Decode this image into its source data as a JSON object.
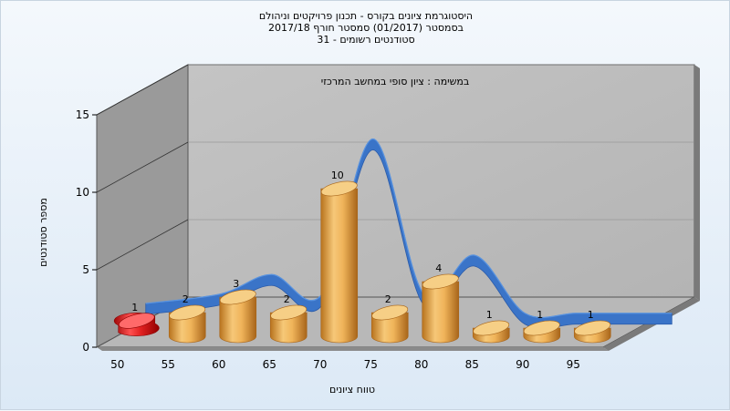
{
  "chart_data": {
    "type": "bar",
    "title_lines": [
      "היסטוגרמת ציונים בקורס - תכנון פרויקטים וניהולם",
      "בסמסטר  (01/2017)  סמסטר חורף  2017/18",
      "סטודנטים רשומים - 31"
    ],
    "subtitle": "במשימה : ציון סופי במחשב המרכזי",
    "xlabel": "טווח ציונים",
    "ylabel": "מספר סטודנטים",
    "x_ticks": [
      "50",
      "55",
      "60",
      "65",
      "70",
      "75",
      "80",
      "85",
      "90",
      "95"
    ],
    "y_ticks": [
      "0",
      "5",
      "10",
      "15"
    ],
    "ylim": [
      0,
      15
    ],
    "bars": [
      {
        "x": 50,
        "value": 1,
        "label": "1",
        "color": "#e02020"
      },
      {
        "x": 55,
        "value": 2,
        "label": "2",
        "color": "#e8a848"
      },
      {
        "x": 60,
        "value": 3,
        "label": "3",
        "color": "#e8a848"
      },
      {
        "x": 65,
        "value": 2,
        "label": "2",
        "color": "#e8a848"
      },
      {
        "x": 70,
        "value": 10,
        "label": "10",
        "color": "#e8a848"
      },
      {
        "x": 75,
        "value": 2,
        "label": "2",
        "color": "#e8a848"
      },
      {
        "x": 80,
        "value": 4,
        "label": "4",
        "color": "#e8a848"
      },
      {
        "x": 85,
        "value": 1,
        "label": "1",
        "color": "#e8a848"
      },
      {
        "x": 90,
        "value": 1,
        "label": "1",
        "color": "#e8a848"
      },
      {
        "x": 95,
        "value": 1,
        "label": "1",
        "color": "#e8a848"
      }
    ],
    "curve_color": "#3a74c8",
    "grid": true
  }
}
